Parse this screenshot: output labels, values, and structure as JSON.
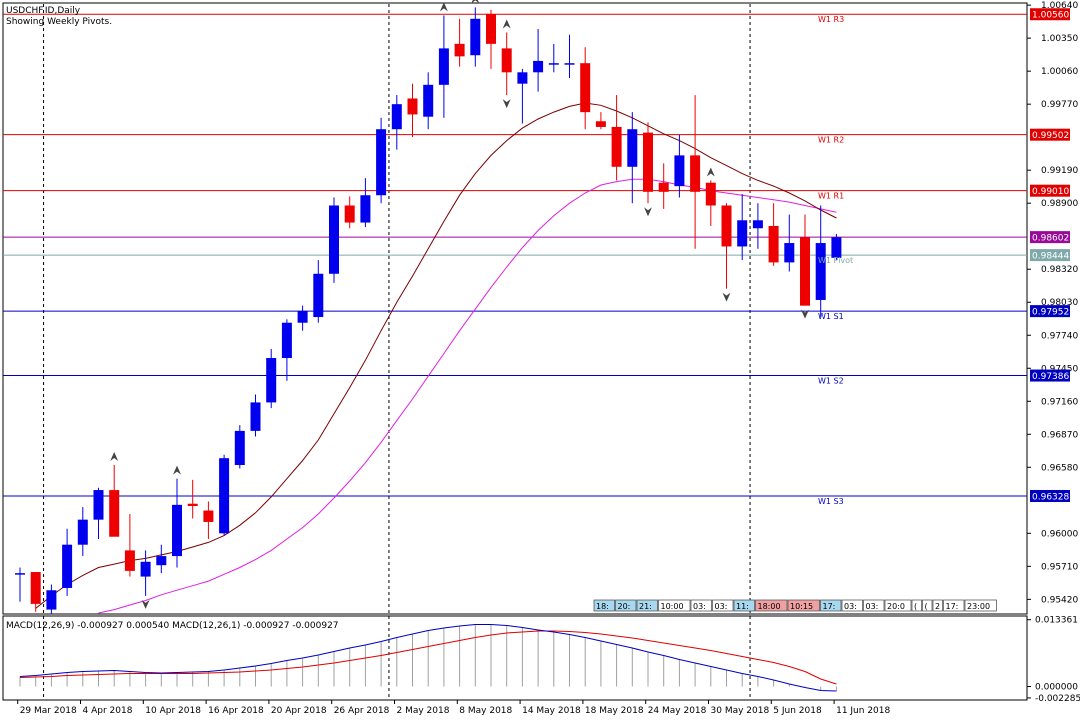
{
  "header": {
    "title": "USDCHF.ID,Daily",
    "subtitle": "Showing Weekly Pivots."
  },
  "chart_data": {
    "type": "candlestick",
    "symbol": "USDCHF.ID",
    "timeframe": "Daily",
    "ylim": [
      0.953,
      1.0065
    ],
    "price_ticks": [
      1.0064,
      1.0035,
      1.0006,
      0.9977,
      0.9919,
      0.989,
      0.9832,
      0.9803,
      0.9774,
      0.9745,
      0.9716,
      0.9687,
      0.9658,
      0.96,
      0.9571,
      0.9542
    ],
    "date_labels": [
      "29 Mar 2018",
      "4 Apr 2018",
      "10 Apr 2018",
      "16 Apr 2018",
      "20 Apr 2018",
      "26 Apr 2018",
      "2 May 2018",
      "8 May 2018",
      "14 May 2018",
      "18 May 2018",
      "24 May 2018",
      "30 May 2018",
      "5 Jun 2018",
      "11 Jun 2018"
    ],
    "date_label_index": [
      1,
      5,
      9,
      13,
      17,
      21,
      25,
      29,
      33,
      37,
      41,
      45,
      49,
      53
    ],
    "period_separator_index": [
      1.5,
      23.5,
      46.5
    ],
    "candles": [
      {
        "o": 0.9565,
        "h": 0.957,
        "l": 0.954,
        "c": 0.9565
      },
      {
        "o": 0.9566,
        "h": 0.9566,
        "l": 0.9531,
        "c": 0.9538
      },
      {
        "o": 0.9533,
        "h": 0.9555,
        "l": 0.9529,
        "c": 0.955
      },
      {
        "o": 0.9552,
        "h": 0.9604,
        "l": 0.9545,
        "c": 0.959
      },
      {
        "o": 0.959,
        "h": 0.9623,
        "l": 0.958,
        "c": 0.9612
      },
      {
        "o": 0.9612,
        "h": 0.964,
        "l": 0.9595,
        "c": 0.9638
      },
      {
        "o": 0.9638,
        "h": 0.966,
        "l": 0.9598,
        "c": 0.9597
      },
      {
        "o": 0.9585,
        "h": 0.9617,
        "l": 0.9562,
        "c": 0.9567
      },
      {
        "o": 0.9562,
        "h": 0.9585,
        "l": 0.9545,
        "c": 0.9575
      },
      {
        "o": 0.9572,
        "h": 0.959,
        "l": 0.9565,
        "c": 0.958
      },
      {
        "o": 0.958,
        "h": 0.9648,
        "l": 0.957,
        "c": 0.9625
      },
      {
        "o": 0.9626,
        "h": 0.9647,
        "l": 0.9613,
        "c": 0.9624
      },
      {
        "o": 0.962,
        "h": 0.9628,
        "l": 0.9595,
        "c": 0.961
      },
      {
        "o": 0.96,
        "h": 0.9669,
        "l": 0.9598,
        "c": 0.9666
      },
      {
        "o": 0.966,
        "h": 0.9695,
        "l": 0.9657,
        "c": 0.969
      },
      {
        "o": 0.969,
        "h": 0.9722,
        "l": 0.9685,
        "c": 0.9715
      },
      {
        "o": 0.9715,
        "h": 0.9762,
        "l": 0.971,
        "c": 0.9754
      },
      {
        "o": 0.9754,
        "h": 0.9788,
        "l": 0.9734,
        "c": 0.9785
      },
      {
        "o": 0.9785,
        "h": 0.98,
        "l": 0.9778,
        "c": 0.9795
      },
      {
        "o": 0.979,
        "h": 0.984,
        "l": 0.9785,
        "c": 0.9828
      },
      {
        "o": 0.9828,
        "h": 0.9895,
        "l": 0.982,
        "c": 0.9888
      },
      {
        "o": 0.9888,
        "h": 0.9896,
        "l": 0.9868,
        "c": 0.9873
      },
      {
        "o": 0.9873,
        "h": 0.9912,
        "l": 0.9869,
        "c": 0.9897
      },
      {
        "o": 0.9897,
        "h": 0.9965,
        "l": 0.989,
        "c": 0.9955
      },
      {
        "o": 0.9955,
        "h": 0.9985,
        "l": 0.9937,
        "c": 0.9977
      },
      {
        "o": 0.9982,
        "h": 0.9995,
        "l": 0.9948,
        "c": 0.9968
      },
      {
        "o": 0.9966,
        "h": 1.0005,
        "l": 0.9955,
        "c": 0.9994
      },
      {
        "o": 0.9994,
        "h": 1.0055,
        "l": 0.9965,
        "c": 1.0026
      },
      {
        "o": 1.003,
        "h": 1.0052,
        "l": 1.001,
        "c": 1.0019
      },
      {
        "o": 1.002,
        "h": 1.0062,
        "l": 1.001,
        "c": 1.0052
      },
      {
        "o": 1.0056,
        "h": 1.006,
        "l": 1.0008,
        "c": 1.003
      },
      {
        "o": 1.0026,
        "h": 1.004,
        "l": 0.9985,
        "c": 1.0005
      },
      {
        "o": 0.9995,
        "h": 1.0008,
        "l": 0.996,
        "c": 1.0005
      },
      {
        "o": 1.0005,
        "h": 1.0043,
        "l": 0.9988,
        "c": 1.0015
      },
      {
        "o": 1.0013,
        "h": 1.003,
        "l": 1.0005,
        "c": 1.0013
      },
      {
        "o": 1.0013,
        "h": 1.0038,
        "l": 1.0,
        "c": 1.0013
      },
      {
        "o": 1.0013,
        "h": 1.0027,
        "l": 0.9955,
        "c": 0.997
      },
      {
        "o": 0.9962,
        "h": 0.997,
        "l": 0.9955,
        "c": 0.9957
      },
      {
        "o": 0.9957,
        "h": 0.9985,
        "l": 0.991,
        "c": 0.9922
      },
      {
        "o": 0.9922,
        "h": 0.997,
        "l": 0.989,
        "c": 0.9955
      },
      {
        "o": 0.9952,
        "h": 0.9961,
        "l": 0.989,
        "c": 0.99
      },
      {
        "o": 0.9908,
        "h": 0.9925,
        "l": 0.9885,
        "c": 0.99
      },
      {
        "o": 0.9905,
        "h": 0.995,
        "l": 0.9895,
        "c": 0.9932
      },
      {
        "o": 0.9932,
        "h": 0.9985,
        "l": 0.985,
        "c": 0.99
      },
      {
        "o": 0.9908,
        "h": 0.991,
        "l": 0.987,
        "c": 0.9888
      },
      {
        "o": 0.9888,
        "h": 0.989,
        "l": 0.9815,
        "c": 0.9852
      },
      {
        "o": 0.9852,
        "h": 0.9898,
        "l": 0.984,
        "c": 0.9875
      },
      {
        "o": 0.9868,
        "h": 0.989,
        "l": 0.985,
        "c": 0.9875
      },
      {
        "o": 0.987,
        "h": 0.989,
        "l": 0.9835,
        "c": 0.9838
      },
      {
        "o": 0.9838,
        "h": 0.988,
        "l": 0.983,
        "c": 0.9855
      },
      {
        "o": 0.986,
        "h": 0.988,
        "l": 0.98,
        "c": 0.98
      },
      {
        "o": 0.9805,
        "h": 0.9888,
        "l": 0.979,
        "c": 0.9855
      },
      {
        "o": 0.9842,
        "h": 0.9863,
        "l": 0.984,
        "c": 0.986
      }
    ],
    "ma_fast": [
      null,
      0.9534,
      0.9545,
      0.9555,
      0.9563,
      0.957,
      0.9573,
      0.9576,
      0.9578,
      0.9581,
      0.9584,
      0.9588,
      0.9592,
      0.9598,
      0.9607,
      0.9618,
      0.9632,
      0.9648,
      0.9664,
      0.9682,
      0.9705,
      0.9728,
      0.9752,
      0.9778,
      0.9803,
      0.9826,
      0.985,
      0.9874,
      0.9897,
      0.9916,
      0.9932,
      0.9945,
      0.9956,
      0.9964,
      0.997,
      0.9975,
      0.9978,
      0.9976,
      0.9971,
      0.9965,
      0.9958,
      0.9951,
      0.9945,
      0.9938,
      0.993,
      0.9923,
      0.9916,
      0.991,
      0.9905,
      0.9899,
      0.9892,
      0.9884,
      0.9877
    ],
    "ma_slow": [
      null,
      null,
      null,
      null,
      null,
      0.953,
      0.9533,
      0.9537,
      0.9541,
      0.9546,
      0.955,
      0.9554,
      0.9558,
      0.9564,
      0.957,
      0.9577,
      0.9585,
      0.9595,
      0.9605,
      0.9617,
      0.9631,
      0.9646,
      0.9662,
      0.968,
      0.9699,
      0.9718,
      0.9738,
      0.9758,
      0.9778,
      0.9797,
      0.9816,
      0.9834,
      0.9851,
      0.9866,
      0.9879,
      0.989,
      0.9899,
      0.9906,
      0.9909,
      0.9911,
      0.9911,
      0.9909,
      0.9906,
      0.9904,
      0.9901,
      0.9899,
      0.9897,
      0.9895,
      0.9893,
      0.9891,
      0.9888,
      0.9885,
      0.9882
    ],
    "fractals_up": [
      6,
      10,
      27,
      29,
      31,
      44
    ],
    "fractals_down": [
      8,
      31,
      40,
      45,
      50
    ],
    "pivots": [
      {
        "label": "W1 R3",
        "value": 1.0056,
        "value_text": "1.00560",
        "color": "#e00000"
      },
      {
        "label": "W1 R2",
        "value": 0.99502,
        "value_text": "0.99502",
        "color": "#e00000"
      },
      {
        "label": "W1 R1",
        "value": 0.9901,
        "value_text": "0.99010",
        "color": "#e00000"
      },
      {
        "label": "W1 Pivot",
        "value": 0.98444,
        "value_text": "0.98444",
        "color": "#7fa9a9"
      },
      {
        "label": "W1 S1",
        "value": 0.97952,
        "value_text": "0.97952",
        "color": "#0000c0"
      },
      {
        "label": "W1 S2",
        "value": 0.97386,
        "value_text": "0.97386",
        "color": "#0000c0"
      },
      {
        "label": "W1 S3",
        "value": 0.96328,
        "value_text": "0.96328",
        "color": "#0000c0"
      }
    ],
    "current_price": {
      "value": 0.98602,
      "value_text": "0.98602",
      "color": "#9a0a9a"
    },
    "session_boxes": [
      {
        "text": "18:",
        "bg": "#a8d8f0"
      },
      {
        "text": "20:",
        "bg": "#a8d8f0"
      },
      {
        "text": "21:",
        "bg": "#a8d8f0"
      },
      {
        "text": "10:00",
        "bg": "#ffffff"
      },
      {
        "text": "03:",
        "bg": "#ffffff"
      },
      {
        "text": "03:",
        "bg": "#ffffff"
      },
      {
        "text": "11:",
        "bg": "#a8d8f0"
      },
      {
        "text": "18:00",
        "bg": "#f0a0a0"
      },
      {
        "text": "10:15",
        "bg": "#f0a0a0"
      },
      {
        "text": "17:",
        "bg": "#a8d8f0"
      },
      {
        "text": "03:",
        "bg": "#ffffff"
      },
      {
        "text": "03:",
        "bg": "#ffffff"
      },
      {
        "text": "20:0",
        "bg": "#ffffff"
      },
      {
        "text": "(",
        "bg": "#ffffff"
      },
      {
        "text": "(",
        "bg": "#ffffff"
      },
      {
        "text": "2",
        "bg": "#ffffff"
      },
      {
        "text": "17:",
        "bg": "#ffffff"
      },
      {
        "text": "23:00",
        "bg": "#ffffff"
      }
    ],
    "macd": {
      "label": "MACD(12,26,9) -0.000927 0.000540 MACD(12,26,1) -0.000927 -0.000927",
      "ylim": [
        -0.0025,
        0.0139
      ],
      "ticks": [
        0.013361,
        0.0,
        -0.002285
      ],
      "tick_labels": [
        "0.013361",
        "0.000000",
        "-0.002285"
      ],
      "main": [
        0.002,
        0.0022,
        0.0025,
        0.0028,
        0.003,
        0.0031,
        0.0032,
        0.003,
        0.0028,
        0.0027,
        0.0028,
        0.0029,
        0.003,
        0.0033,
        0.0037,
        0.0041,
        0.0046,
        0.0052,
        0.0057,
        0.0063,
        0.007,
        0.0077,
        0.0083,
        0.009,
        0.0098,
        0.0105,
        0.0112,
        0.0117,
        0.0121,
        0.0124,
        0.0124,
        0.0122,
        0.0118,
        0.0113,
        0.0109,
        0.0104,
        0.0098,
        0.0091,
        0.0084,
        0.0077,
        0.0069,
        0.0062,
        0.0054,
        0.0047,
        0.004,
        0.0033,
        0.0026,
        0.002,
        0.0013,
        0.0005,
        -0.0002,
        -0.0008,
        -0.0009
      ],
      "signal": [
        0.0018,
        0.0019,
        0.002,
        0.0022,
        0.0023,
        0.0024,
        0.0025,
        0.0026,
        0.0026,
        0.0026,
        0.0026,
        0.0026,
        0.0027,
        0.0028,
        0.0029,
        0.0031,
        0.0033,
        0.0036,
        0.0039,
        0.0043,
        0.0047,
        0.0052,
        0.0057,
        0.0062,
        0.0068,
        0.0074,
        0.008,
        0.0086,
        0.0092,
        0.0098,
        0.0103,
        0.0107,
        0.0109,
        0.0111,
        0.0111,
        0.011,
        0.0108,
        0.0105,
        0.0101,
        0.0097,
        0.0092,
        0.0087,
        0.0082,
        0.0077,
        0.0072,
        0.0066,
        0.006,
        0.0054,
        0.0048,
        0.004,
        0.003,
        0.0015,
        0.0005
      ]
    }
  }
}
